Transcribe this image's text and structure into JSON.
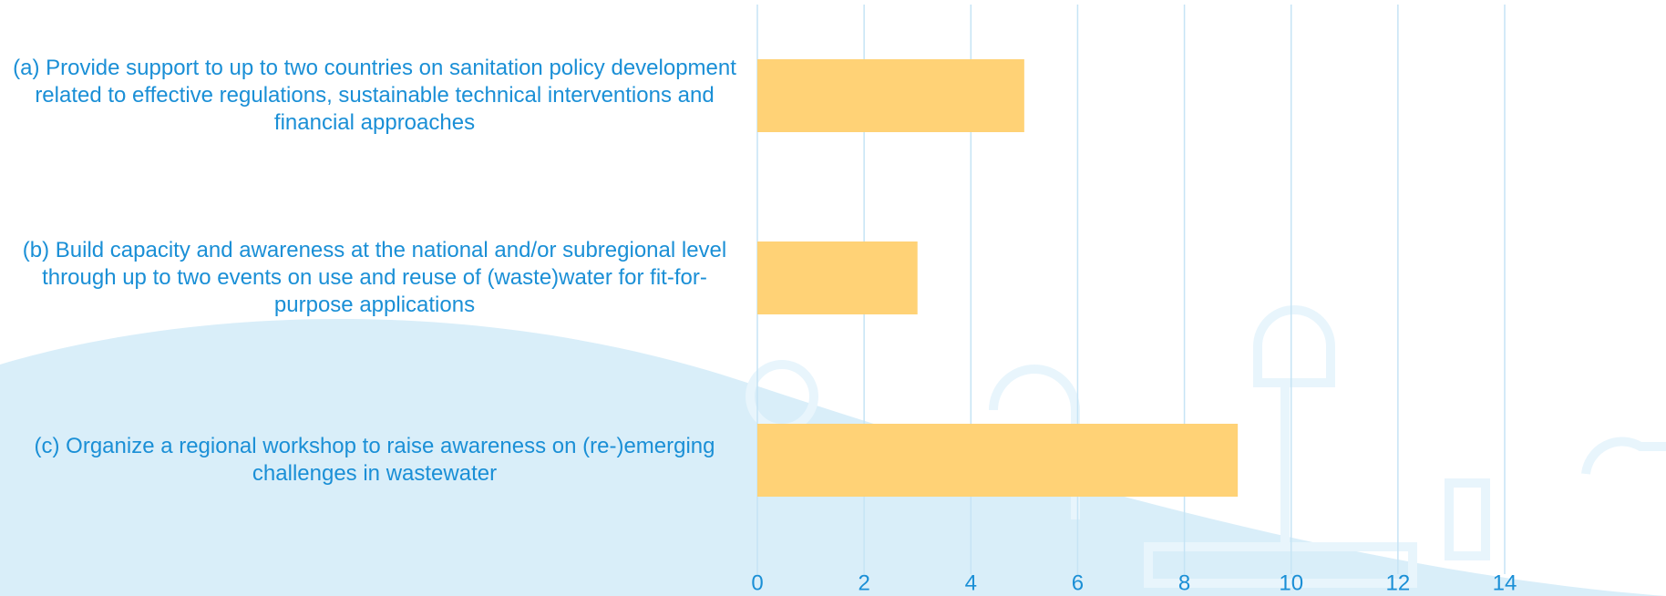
{
  "chart_data": {
    "type": "barh",
    "categories": [
      "(a) Provide support to up to two countries on sanitation policy development related to effective regulations, sustainable technical interventions and financial approaches",
      "(b) Build capacity and awareness at the national and/or subregional level through up to two events on use and reuse of (waste)water for fit-for-purpose applications",
      "(c) Organize a regional workshop to raise awareness on (re-)emerging challenges in wastewater"
    ],
    "values": [
      5,
      3,
      9
    ],
    "color": "#ffd276",
    "xlim": [
      0,
      14
    ],
    "xticks": [
      0,
      2,
      4,
      6,
      8,
      10,
      12,
      14
    ],
    "grid": true
  }
}
